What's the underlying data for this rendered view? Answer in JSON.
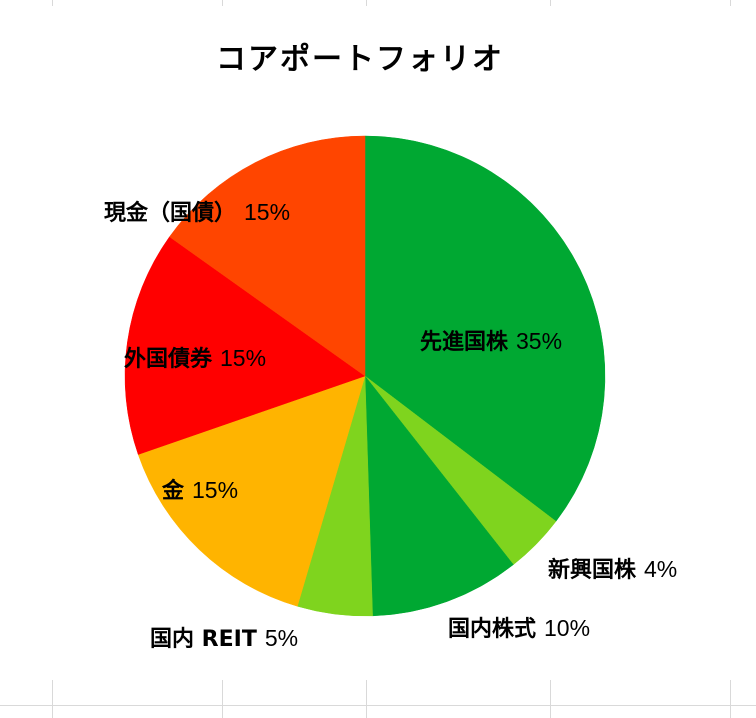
{
  "chart_data": {
    "type": "pie",
    "title": "コアポートフォリオ",
    "start_angle_deg": 0,
    "direction": "clockwise",
    "slices": [
      {
        "label": "先進国株",
        "value": 35,
        "value_label": "35%",
        "color": "#00a832"
      },
      {
        "label": "新興国株",
        "value": 4,
        "value_label": "4%",
        "color": "#7fd41e"
      },
      {
        "label": "国内株式",
        "value": 10,
        "value_label": "10%",
        "color": "#00a832"
      },
      {
        "label": "国内 REIT",
        "value": 5,
        "value_label": "5%",
        "color": "#7fd41e"
      },
      {
        "label": "金",
        "value": 15,
        "value_label": "15%",
        "color": "#ffb400"
      },
      {
        "label": "外国債券",
        "value": 15,
        "value_label": "15%",
        "color": "#ff0000"
      },
      {
        "label": "現金（国債）",
        "value": 15,
        "value_label": "15%",
        "color": "#ff4500"
      }
    ]
  }
}
